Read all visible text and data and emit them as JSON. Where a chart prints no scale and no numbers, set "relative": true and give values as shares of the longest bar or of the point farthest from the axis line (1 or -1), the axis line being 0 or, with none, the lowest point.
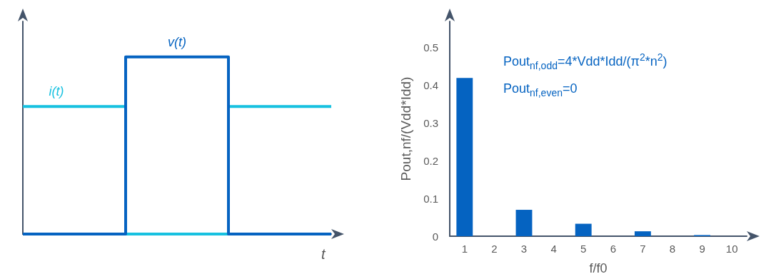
{
  "chart_data": [
    {
      "type": "step",
      "relative": true,
      "categories": [
        null,
        null,
        null,
        null
      ],
      "xlabel": "t",
      "grid": false,
      "marker": "none",
      "series": [
        {
          "name": "i(t)",
          "color": "#17c1e0",
          "values": [
            0.72,
            0,
            0.72,
            0.72
          ]
        },
        {
          "name": "v(t)",
          "color": "#0563c1",
          "values": [
            0,
            1,
            0,
            0
          ]
        }
      ]
    },
    {
      "type": "bar",
      "categories": [
        "1",
        "2",
        "3",
        "4",
        "5",
        "6",
        "7",
        "8",
        "9",
        "10"
      ],
      "values": [
        0.42,
        0,
        0.07,
        0,
        0.033,
        0,
        0.013,
        0,
        0.003,
        0
      ],
      "color": "#0563c1",
      "xlabel": "f/f0",
      "ylabel": "Pout,nf/(Vdd*Idd)",
      "ylim": [
        0,
        0.57
      ],
      "yticks": [
        0,
        0.1,
        0.2,
        0.3,
        0.4,
        0.5
      ],
      "grid": false,
      "annotations": [
        "Pout$_{nf,odd}$=4*Vdd*Idd/(π$^{2}$*n$^{2}$)",
        "Pout$_{nf,even}$=0"
      ]
    }
  ]
}
